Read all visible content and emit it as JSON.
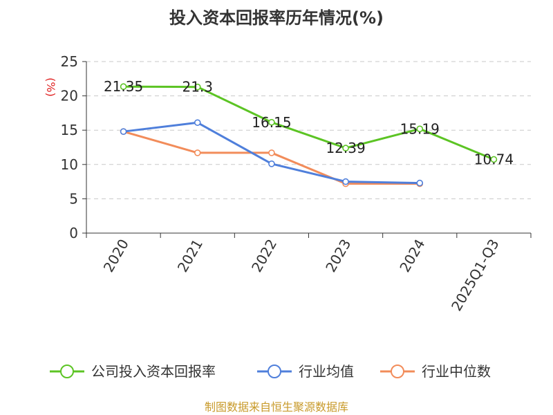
{
  "chart_data": {
    "type": "line",
    "title": "投入资本回报率历年情况(%)",
    "ylabel": "(%)",
    "categories": [
      "2020",
      "2021",
      "2022",
      "2023",
      "2024",
      "2025Q1-Q3"
    ],
    "ylim": [
      0,
      25
    ],
    "yticks": [
      0,
      5,
      10,
      15,
      20,
      25
    ],
    "grid": true,
    "legend_position": "bottom",
    "series": [
      {
        "name": "公司投入资本回报率",
        "color": "#5cc424",
        "values": [
          21.35,
          21.3,
          16.15,
          12.39,
          15.19,
          10.74
        ],
        "labels": [
          "21.35",
          "21.3",
          "16.15",
          "12.39",
          "15.19",
          "10.74"
        ]
      },
      {
        "name": "行业均值",
        "color": "#4f7fdb",
        "values": [
          14.8,
          16.1,
          10.1,
          7.5,
          7.3,
          null
        ]
      },
      {
        "name": "行业中位数",
        "color": "#f28c5a",
        "values": [
          14.8,
          11.7,
          11.7,
          7.2,
          7.2,
          null
        ]
      }
    ]
  },
  "source": "制图数据来自恒生聚源数据库"
}
